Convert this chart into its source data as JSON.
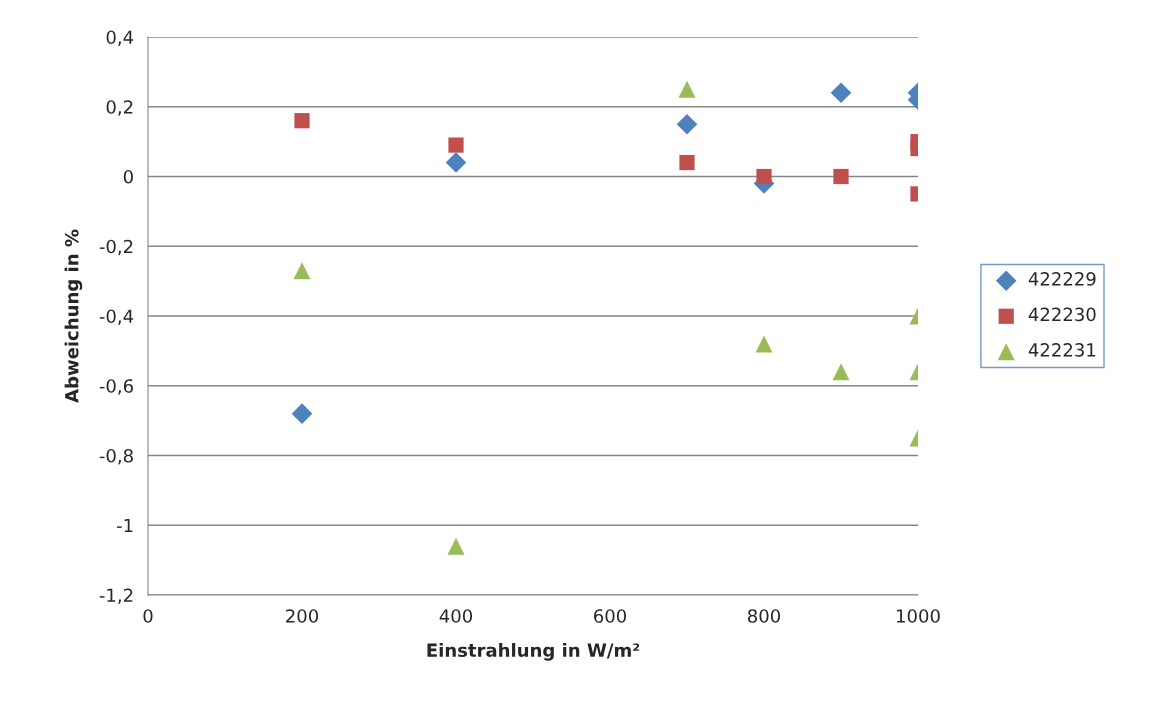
{
  "chart_data": {
    "type": "scatter",
    "xlabel": "Einstrahlung in W/m²",
    "ylabel": "Abweichung in %",
    "xlim": [
      0,
      1000
    ],
    "xticks": [
      0,
      200,
      400,
      600,
      800,
      1000
    ],
    "ylim": [
      -1.2,
      0.4
    ],
    "yticks": [
      {
        "value": -1.2,
        "label": "-1,2"
      },
      {
        "value": -1,
        "label": "-1"
      },
      {
        "value": -0.8,
        "label": "-0,8"
      },
      {
        "value": -0.6,
        "label": "-0,6"
      },
      {
        "value": -0.4,
        "label": "-0,4"
      },
      {
        "value": -0.2,
        "label": "-0,2"
      },
      {
        "value": 0,
        "label": "0"
      },
      {
        "value": 0.2,
        "label": "0,2"
      },
      {
        "value": 0.4,
        "label": "0,4"
      }
    ],
    "grid": "y",
    "legend": "right",
    "series": [
      {
        "name": "422229",
        "color": "#4f81bd",
        "marker": "diamond",
        "x": [
          200,
          400,
          700,
          800,
          900,
          1000,
          1000
        ],
        "values": [
          -0.68,
          0.04,
          0.15,
          -0.02,
          0.24,
          0.24,
          0.22
        ]
      },
      {
        "name": "422230",
        "color": "#c0504d",
        "marker": "square",
        "x": [
          200,
          400,
          700,
          800,
          900,
          1000,
          1000,
          1000
        ],
        "values": [
          0.16,
          0.09,
          0.04,
          0.0,
          0.0,
          0.1,
          0.08,
          -0.05
        ]
      },
      {
        "name": "422231",
        "color": "#9bbb59",
        "marker": "triangle",
        "x": [
          200,
          400,
          700,
          800,
          900,
          1000,
          1000,
          1000
        ],
        "values": [
          -0.27,
          -1.06,
          0.25,
          -0.48,
          -0.56,
          -0.4,
          -0.56,
          -0.75
        ]
      }
    ]
  }
}
